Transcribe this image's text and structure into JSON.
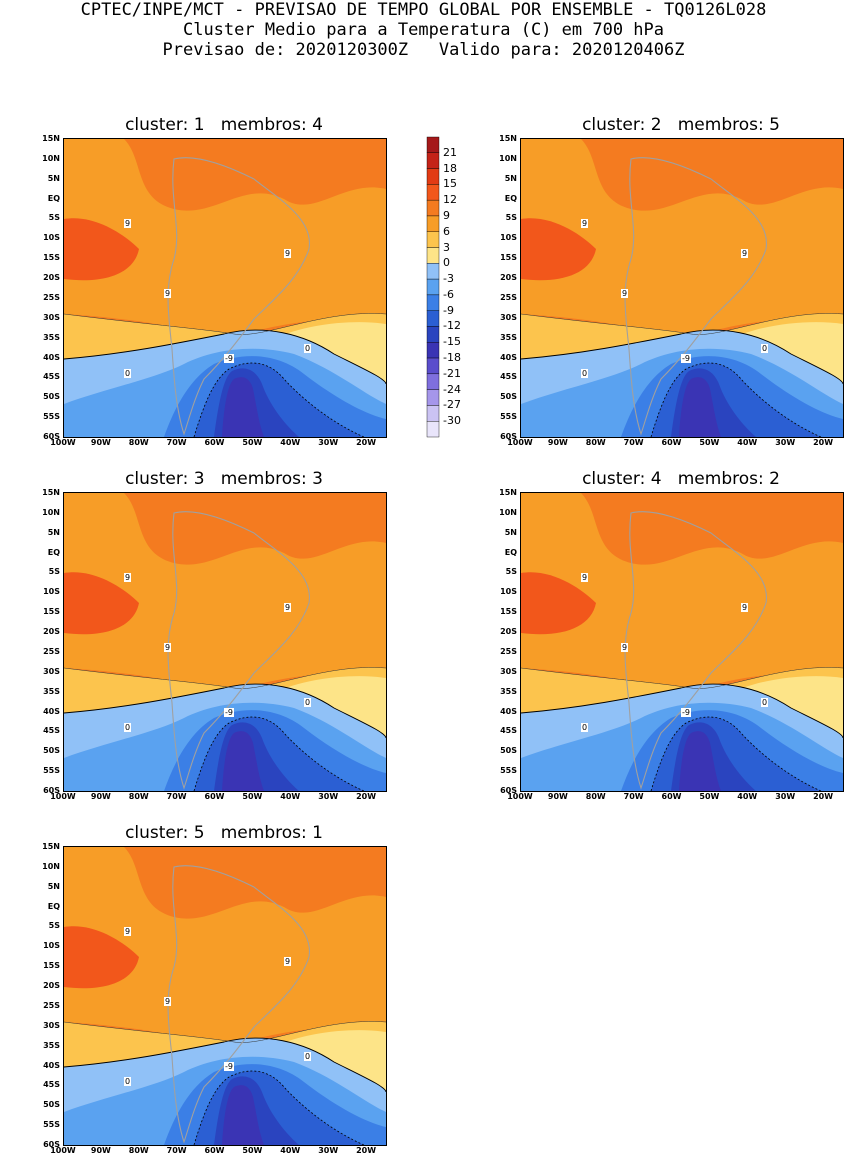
{
  "header": {
    "line1": "CPTEC/INPE/MCT - PREVISAO DE TEMPO GLOBAL POR ENSEMBLE - TQ0126L028",
    "line2": "Cluster Medio para a Temperatura (C) em 700 hPa",
    "line3": "Previsao de: 2020120300Z   Valido para: 2020120406Z"
  },
  "panels": [
    {
      "title": "cluster: 1   membros: 4"
    },
    {
      "title": "cluster: 2   membros: 5"
    },
    {
      "title": "cluster: 3   membros: 3"
    },
    {
      "title": "cluster: 4   membros: 2"
    },
    {
      "title": "cluster: 5   membros: 1"
    }
  ],
  "axes": {
    "lat_labels": [
      "15N",
      "10N",
      "5N",
      "EQ",
      "5S",
      "10S",
      "15S",
      "20S",
      "25S",
      "30S",
      "35S",
      "40S",
      "45S",
      "50S",
      "55S",
      "60S"
    ],
    "lon_labels": [
      "100W",
      "90W",
      "80W",
      "70W",
      "60W",
      "50W",
      "40W",
      "30W",
      "20W"
    ]
  },
  "colorbar": {
    "labels": [
      "21",
      "18",
      "15",
      "12",
      "9",
      "6",
      "3",
      "0",
      "-3",
      "-6",
      "-9",
      "-12",
      "-15",
      "-18",
      "-21",
      "-24",
      "-27",
      "-30"
    ],
    "colors": [
      "#a5191a",
      "#c42318",
      "#e23b14",
      "#f2571b",
      "#f47b20",
      "#f79d27",
      "#fcc44d",
      "#fde488",
      "#90c1f7",
      "#5aa2f0",
      "#3b7fe6",
      "#2b5fd3",
      "#2a44bf",
      "#3a34b4",
      "#5a4dcc",
      "#7f6fde",
      "#a596ea",
      "#cbc3f3",
      "#e9e5fb"
    ]
  },
  "chart_data": {
    "type": "contour_map",
    "variable": "Temperatura (C) em 700 hPa",
    "lat_range": [
      -60,
      15
    ],
    "lon_range": [
      -100,
      -15
    ],
    "contour_labels": [
      "9",
      "0",
      "-9"
    ]
  }
}
